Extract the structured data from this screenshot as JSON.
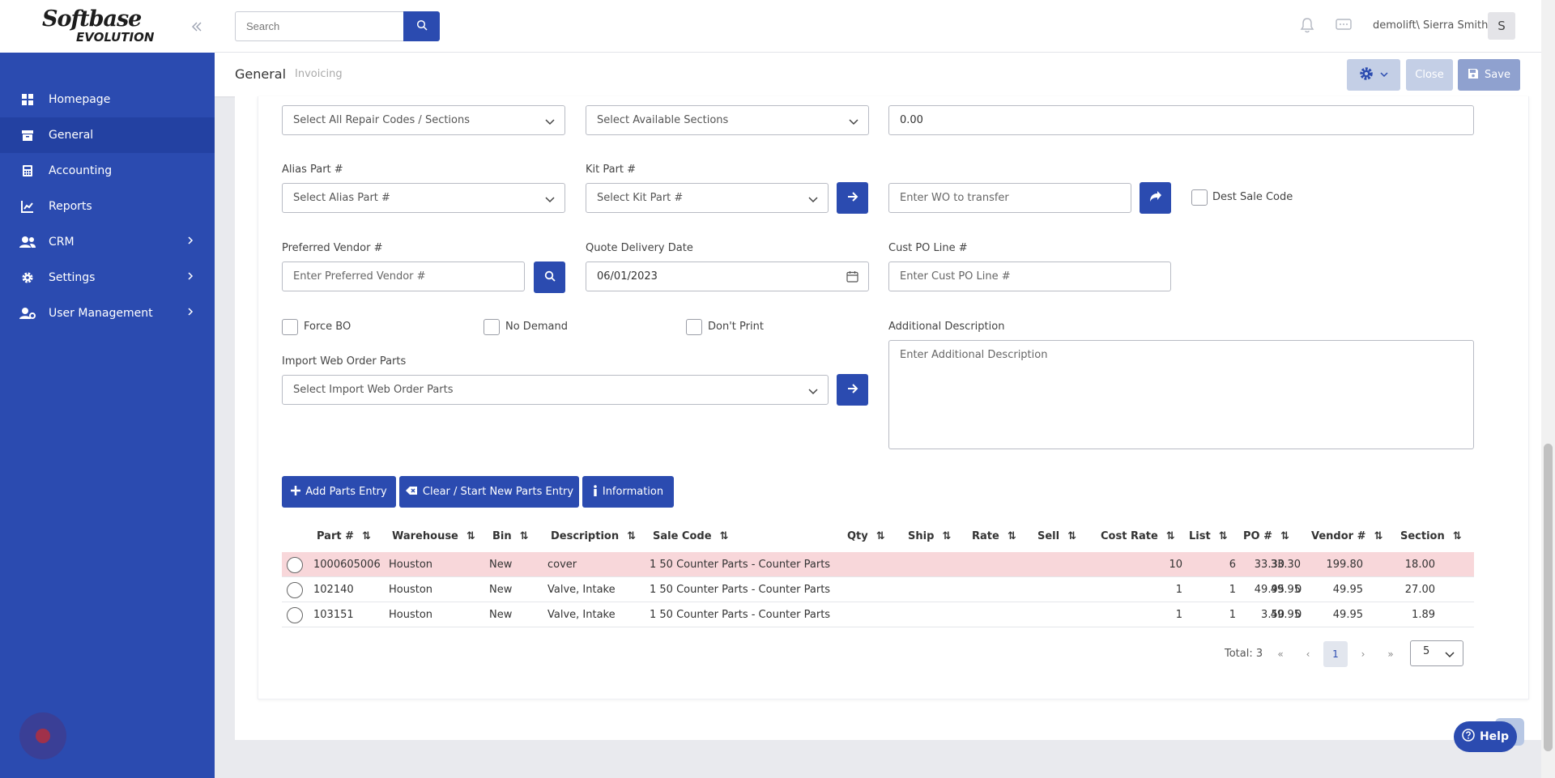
{
  "app": {
    "logo_line1": "Softbase",
    "logo_line2": "EVOLUTION"
  },
  "sidebar": {
    "items": [
      {
        "label": "Homepage",
        "icon": "dashboard-icon"
      },
      {
        "label": "General",
        "icon": "archive-icon",
        "active": true
      },
      {
        "label": "Accounting",
        "icon": "calculator-icon"
      },
      {
        "label": "Reports",
        "icon": "chart-icon"
      },
      {
        "label": "CRM",
        "icon": "users-icon",
        "has_children": true
      },
      {
        "label": "Settings",
        "icon": "gear-icon",
        "has_children": true
      },
      {
        "label": "User Management",
        "icon": "user-gear-icon",
        "has_children": true
      }
    ]
  },
  "topbar": {
    "search_placeholder": "Search",
    "user": "demolift\\ Sierra Smith",
    "avatar_initial": "S"
  },
  "subheader": {
    "tab_general": "General",
    "tab_invoicing": "Invoicing",
    "close_label": "Close",
    "save_label": "Save"
  },
  "form": {
    "repair_codes_select": "Select All Repair Codes / Sections",
    "available_sections_select": "Select Available Sections",
    "amount_value": "0.00",
    "alias_part_label": "Alias Part #",
    "alias_part_select": "Select Alias Part #",
    "kit_part_label": "Kit Part #",
    "kit_part_select": "Select Kit Part #",
    "wo_transfer_placeholder": "Enter WO to transfer",
    "dest_sale_code_label": "Dest Sale Code",
    "preferred_vendor_label": "Preferred Vendor #",
    "preferred_vendor_placeholder": "Enter Preferred Vendor #",
    "quote_delivery_label": "Quote Delivery Date",
    "quote_delivery_value": "06/01/2023",
    "cust_po_label": "Cust PO Line #",
    "cust_po_placeholder": "Enter Cust PO Line #",
    "force_bo_label": "Force BO",
    "no_demand_label": "No Demand",
    "dont_print_label": "Don't Print",
    "additional_desc_label": "Additional Description",
    "additional_desc_placeholder": "Enter Additional Description",
    "import_web_label": "Import Web Order Parts",
    "import_web_select": "Select Import Web Order Parts"
  },
  "actions": {
    "add_parts": "Add Parts Entry",
    "clear_parts": "Clear / Start New Parts Entry",
    "information": "Information"
  },
  "table": {
    "columns": [
      "Part #",
      "Warehouse",
      "Bin",
      "Description",
      "Sale Code",
      "Qty",
      "Ship",
      "Rate",
      "Sell",
      "Cost Rate",
      "List",
      "PO #",
      "Vendor #",
      "Section"
    ],
    "rows": [
      {
        "part": "1000605006",
        "warehouse": "Houston",
        "bin": "New",
        "description": "cover",
        "sale_code": "1 50 Counter Parts - Counter Parts",
        "qty": "10",
        "ship": "6",
        "rate": "33.30",
        "sell": "199.80",
        "cost_rate": "18.00",
        "list": "33.30",
        "po": "",
        "vendor": "",
        "section": ""
      },
      {
        "part": "102140",
        "warehouse": "Houston",
        "bin": "New",
        "description": "Valve, Intake",
        "sale_code": "1 50 Counter Parts - Counter Parts",
        "qty": "1",
        "ship": "1",
        "rate": "49.95",
        "sell": "49.95",
        "cost_rate": "27.00",
        "list": "49.95",
        "po": "0",
        "vendor": "",
        "section": ""
      },
      {
        "part": "103151",
        "warehouse": "Houston",
        "bin": "New",
        "description": "Valve, Intake",
        "sale_code": "1 50 Counter Parts - Counter Parts",
        "qty": "1",
        "ship": "1",
        "rate": "49.95",
        "sell": "49.95",
        "cost_rate": "1.89",
        "list": "3.50",
        "po": "0",
        "vendor": "",
        "section": ""
      }
    ]
  },
  "pager": {
    "total": "Total: 3",
    "current_page": "1",
    "page_size": "5"
  },
  "help": {
    "label": "Help"
  },
  "colors": {
    "primary": "#2b4bb0",
    "selected_row": "#f8d7da"
  }
}
